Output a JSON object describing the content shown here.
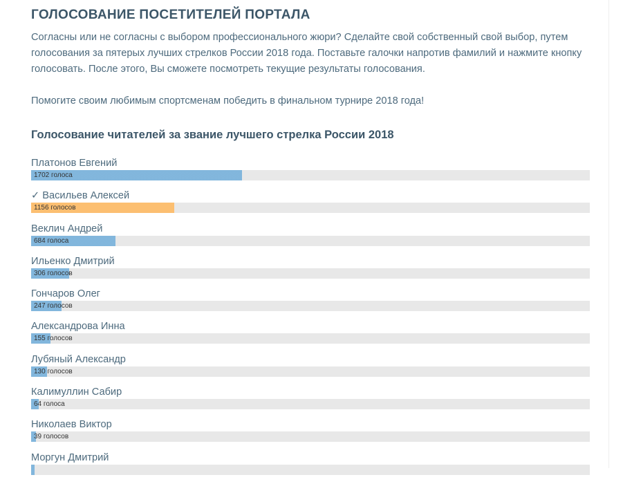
{
  "header": {
    "title": "ГОЛОСОВАНИЕ ПОСЕТИТЕЛЕЙ ПОРТАЛА"
  },
  "intro": [
    "Согласны или не согласны с выбором профессионального жюри? Сделайте свой собственный свой выбор, путем голосования за пятерых лучших стрелков России 2018 года. Поставьте галочки напротив фамилий и нажмите кнопку голосовать. После этого, Вы сможете посмотреть текущие результаты голосования.",
    "Помогите своим любимым спортсменам победить в финальном турнире 2018 года!"
  ],
  "poll": {
    "title": "Голосование читателей за звание лучшего стрелка России 2018",
    "bar_color": "#7db4dc",
    "selected_color": "#fdbd6b",
    "items": [
      {
        "name": "Платонов Евгений",
        "votes": 1702,
        "votes_label": "1702 голоса"
      },
      {
        "name": "✓ Васильев Алексей",
        "votes": 1156,
        "votes_label": "1156 голосов",
        "selected": true
      },
      {
        "name": "Веклич Андрей",
        "votes": 684,
        "votes_label": "684 голоса"
      },
      {
        "name": "Ильенко Дмитрий",
        "votes": 306,
        "votes_label": "306 голосов"
      },
      {
        "name": "Гончаров Олег",
        "votes": 247,
        "votes_label": "247 голосов"
      },
      {
        "name": "Александрова Инна",
        "votes": 155,
        "votes_label": "155 голосов"
      },
      {
        "name": "Лубяный Александр",
        "votes": 130,
        "votes_label": "130 голосов"
      },
      {
        "name": "Калимуллин Сабир",
        "votes": 64,
        "votes_label": "64 голоса"
      },
      {
        "name": "Николаев Виктор",
        "votes": 39,
        "votes_label": "39 голосов"
      },
      {
        "name": "Моргун Дмитрий",
        "votes": 30,
        "votes_label": null
      }
    ]
  }
}
